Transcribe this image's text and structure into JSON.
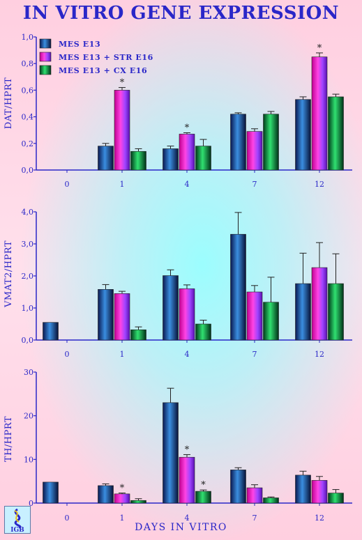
{
  "title": "IN VITRO GENE EXPRESSION",
  "xlabel": "DAYS IN VITRO",
  "logo_text": "IGB",
  "colors": {
    "axis": "#2a27c8",
    "label": "#2a27c8",
    "series": [
      "#1f5fc8",
      "#ff30d8",
      "#20c060"
    ]
  },
  "legend": [
    "MES E13",
    "MES E13 + STR E16",
    "MES E13 + CX E16"
  ],
  "chart_data": [
    {
      "type": "bar",
      "ylabel": "DAT/HPRT",
      "categories": [
        "0",
        "1",
        "4",
        "7",
        "12"
      ],
      "ylim": [
        0,
        1.0
      ],
      "yticks": [
        "0,0",
        "0,2",
        "0,4",
        "0,6",
        "0,8",
        "1,0"
      ],
      "series": [
        {
          "name": "MES E13",
          "values": [
            null,
            0.18,
            0.16,
            0.42,
            0.53
          ],
          "errors": [
            null,
            0.02,
            0.02,
            0.01,
            0.02
          ]
        },
        {
          "name": "MES E13 + STR E16",
          "values": [
            null,
            0.6,
            0.27,
            0.29,
            0.85
          ],
          "errors": [
            null,
            0.02,
            0.01,
            0.02,
            0.03
          ]
        },
        {
          "name": "MES E13 + CX E16",
          "values": [
            null,
            0.14,
            0.18,
            0.42,
            0.55
          ],
          "errors": [
            null,
            0.02,
            0.05,
            0.02,
            0.02
          ]
        }
      ],
      "significance": [
        [
          1,
          1
        ],
        [
          2,
          1
        ],
        [
          4,
          1
        ]
      ],
      "significance_mark": "*"
    },
    {
      "type": "bar",
      "ylabel": "VMAT2/HPRT",
      "categories": [
        "0",
        "1",
        "4",
        "7",
        "12"
      ],
      "ylim": [
        0,
        4.0
      ],
      "yticks": [
        "0,0",
        "1,0",
        "2,0",
        "3,0",
        "4,0"
      ],
      "series": [
        {
          "name": "MES E13",
          "values": [
            0.55,
            1.58,
            2.01,
            3.3,
            1.76
          ],
          "errors": [
            null,
            0.15,
            0.18,
            0.68,
            0.95
          ]
        },
        {
          "name": "MES E13 + STR E16",
          "values": [
            null,
            1.45,
            1.6,
            1.5,
            2.26
          ],
          "errors": [
            null,
            0.07,
            0.12,
            0.2,
            0.78
          ]
        },
        {
          "name": "MES E13 + CX E16",
          "values": [
            null,
            0.32,
            0.5,
            1.18,
            1.76
          ],
          "errors": [
            null,
            0.09,
            0.12,
            0.78,
            0.93
          ]
        }
      ],
      "significance": [],
      "significance_mark": "*"
    },
    {
      "type": "bar",
      "ylabel": "TH/HPRT",
      "categories": [
        "0",
        "1",
        "4",
        "7",
        "12"
      ],
      "ylim": [
        0,
        30
      ],
      "yticks": [
        "0",
        "10",
        "20",
        "30"
      ],
      "series": [
        {
          "name": "MES E13",
          "values": [
            4.8,
            4.0,
            23.0,
            7.6,
            6.4
          ],
          "errors": [
            null,
            0.4,
            3.3,
            0.5,
            0.9
          ]
        },
        {
          "name": "MES E13 + STR E16",
          "values": [
            null,
            2.1,
            10.5,
            3.5,
            5.2
          ],
          "errors": [
            null,
            0.2,
            0.6,
            0.7,
            0.9
          ]
        },
        {
          "name": "MES E13 + CX E16",
          "values": [
            null,
            0.6,
            2.7,
            1.2,
            2.3
          ],
          "errors": [
            null,
            0.4,
            0.3,
            0.2,
            0.8
          ]
        }
      ],
      "significance": [
        [
          1,
          1
        ],
        [
          2,
          1
        ],
        [
          2,
          2
        ]
      ],
      "significance_mark": "*"
    }
  ]
}
